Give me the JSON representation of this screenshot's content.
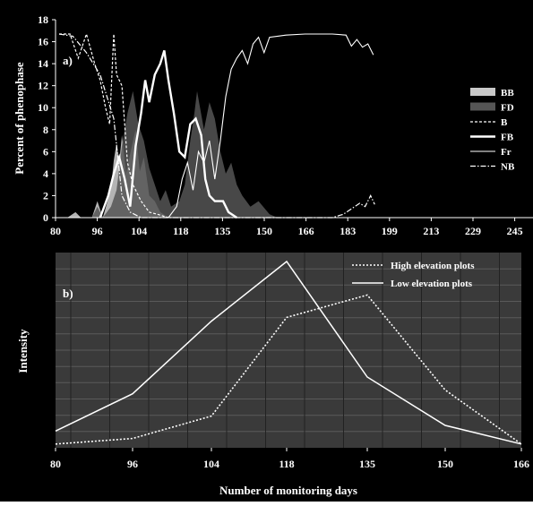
{
  "figure": {
    "xlabel_bottom": "Number of monitoring days"
  },
  "chart_data": [
    {
      "type": "area",
      "panel_label": "a)",
      "ylabel": "Percent of phenophase",
      "xlabel": "",
      "y_ticks": [
        0,
        2,
        4,
        6,
        8,
        10,
        12,
        14,
        16,
        18
      ],
      "ylim": [
        0,
        18
      ],
      "x_tick_labels": [
        "80",
        "96",
        "104",
        "118",
        "135",
        "150",
        "166",
        "183",
        "199",
        "213",
        "229",
        "245"
      ],
      "xlim_index": [
        0,
        11.55
      ],
      "grid": false,
      "legend_placement": "right",
      "series": [
        {
          "name": "BB",
          "style": "filled-light",
          "color": "#c8c8c8",
          "points": [
            [
              0.3,
              0
            ],
            [
              0.6,
              0.5
            ],
            [
              0.8,
              0
            ],
            [
              1.2,
              0
            ],
            [
              1.4,
              1.5
            ],
            [
              1.6,
              0
            ],
            [
              1.9,
              2.6
            ],
            [
              2.0,
              5.2
            ],
            [
              2.1,
              6.8
            ],
            [
              2.2,
              5.0
            ],
            [
              2.3,
              7.5
            ],
            [
              2.45,
              4.0
            ],
            [
              2.6,
              5.8
            ],
            [
              2.8,
              8.0
            ],
            [
              2.95,
              4.2
            ],
            [
              3.1,
              5.5
            ],
            [
              3.3,
              2.0
            ],
            [
              3.5,
              1.5
            ],
            [
              3.7,
              0.5
            ],
            [
              4.0,
              0
            ]
          ]
        },
        {
          "name": "FD",
          "style": "filled-dark",
          "color": "#555555",
          "points": [
            [
              1.2,
              0
            ],
            [
              1.4,
              1.0
            ],
            [
              1.6,
              0
            ],
            [
              1.9,
              1.0
            ],
            [
              2.1,
              2.5
            ],
            [
              2.3,
              6.5
            ],
            [
              2.5,
              9.5
            ],
            [
              2.7,
              11.5
            ],
            [
              2.9,
              8.5
            ],
            [
              3.1,
              7.0
            ],
            [
              3.3,
              4.5
            ],
            [
              3.5,
              3.0
            ],
            [
              3.7,
              1.5
            ],
            [
              3.9,
              2.5
            ],
            [
              4.1,
              1.0
            ],
            [
              4.4,
              1.5
            ],
            [
              4.6,
              3.0
            ],
            [
              4.8,
              7.0
            ],
            [
              4.95,
              9.5
            ],
            [
              5.05,
              11.5
            ],
            [
              5.3,
              8.0
            ],
            [
              5.5,
              10.5
            ],
            [
              5.7,
              9.0
            ],
            [
              5.9,
              6.0
            ],
            [
              6.1,
              4.0
            ],
            [
              6.3,
              5.0
            ],
            [
              6.5,
              3.0
            ],
            [
              6.7,
              2.0
            ],
            [
              7.0,
              1.0
            ],
            [
              7.3,
              1.5
            ],
            [
              7.7,
              0.3
            ],
            [
              8.0,
              0
            ]
          ]
        },
        {
          "name": "B",
          "style": "dashed",
          "color": "#ffffff",
          "points": [
            [
              0,
              16.7
            ],
            [
              0.4,
              16.7
            ],
            [
              0.7,
              14.5
            ],
            [
              1.0,
              16.7
            ],
            [
              1.3,
              14.0
            ],
            [
              1.5,
              12.5
            ],
            [
              1.7,
              10.0
            ],
            [
              1.85,
              8.5
            ],
            [
              2.0,
              16.7
            ],
            [
              2.1,
              13.0
            ],
            [
              2.3,
              12.0
            ],
            [
              2.5,
              5.0
            ],
            [
              2.7,
              3.0
            ],
            [
              3.0,
              1.5
            ],
            [
              3.3,
              0.5
            ],
            [
              3.6,
              0.3
            ],
            [
              4.0,
              0
            ]
          ]
        },
        {
          "name": "FB",
          "style": "thick",
          "color": "#ffffff",
          "points": [
            [
              1.5,
              0
            ],
            [
              1.8,
              2.0
            ],
            [
              2.0,
              4.0
            ],
            [
              2.2,
              5.5
            ],
            [
              2.4,
              3.5
            ],
            [
              2.6,
              1.0
            ],
            [
              2.8,
              6.5
            ],
            [
              3.0,
              9.5
            ],
            [
              3.15,
              12.5
            ],
            [
              3.3,
              10.5
            ],
            [
              3.5,
              13.0
            ],
            [
              3.7,
              14.0
            ],
            [
              3.85,
              15.2
            ],
            [
              4.0,
              12.5
            ],
            [
              4.2,
              9.5
            ],
            [
              4.4,
              6.0
            ],
            [
              4.6,
              5.5
            ],
            [
              4.8,
              8.5
            ],
            [
              5.0,
              9.0
            ],
            [
              5.2,
              7.5
            ],
            [
              5.35,
              3.5
            ],
            [
              5.5,
              2.0
            ],
            [
              5.7,
              1.5
            ],
            [
              6.0,
              1.5
            ],
            [
              6.2,
              0.5
            ],
            [
              6.5,
              0
            ]
          ]
        },
        {
          "name": "Fr",
          "style": "thin",
          "color": "#ffffff",
          "points": [
            [
              4.0,
              0
            ],
            [
              4.3,
              1.0
            ],
            [
              4.5,
              3.5
            ],
            [
              4.7,
              5.0
            ],
            [
              4.9,
              2.5
            ],
            [
              5.1,
              6.0
            ],
            [
              5.3,
              5.0
            ],
            [
              5.5,
              7.0
            ],
            [
              5.7,
              3.5
            ],
            [
              5.9,
              7.0
            ],
            [
              6.1,
              11.0
            ],
            [
              6.3,
              13.5
            ],
            [
              6.5,
              14.5
            ],
            [
              6.7,
              15.2
            ],
            [
              6.9,
              14.0
            ],
            [
              7.1,
              15.8
            ],
            [
              7.3,
              16.4
            ],
            [
              7.5,
              15.0
            ],
            [
              7.7,
              16.4
            ],
            [
              8.0,
              16.5
            ],
            [
              8.3,
              16.6
            ],
            [
              9.0,
              16.7
            ],
            [
              10.0,
              16.7
            ],
            [
              10.5,
              16.6
            ],
            [
              10.7,
              15.6
            ],
            [
              10.9,
              16.2
            ],
            [
              11.1,
              15.5
            ],
            [
              11.3,
              15.8
            ],
            [
              11.5,
              14.8
            ]
          ]
        },
        {
          "name": "NB",
          "style": "dash-dot",
          "color": "#ffffff",
          "points": [
            [
              0,
              16.7
            ],
            [
              0.5,
              16.5
            ],
            [
              1.0,
              15.0
            ],
            [
              1.5,
              13.0
            ],
            [
              2.0,
              9.0
            ],
            [
              2.3,
              2.0
            ],
            [
              2.6,
              0.5
            ],
            [
              3.0,
              0
            ],
            [
              10.0,
              0
            ],
            [
              10.4,
              0.3
            ],
            [
              10.7,
              0.8
            ],
            [
              11.0,
              1.3
            ],
            [
              11.2,
              1.0
            ],
            [
              11.4,
              2.0
            ],
            [
              11.55,
              1.2
            ]
          ]
        }
      ]
    },
    {
      "type": "line",
      "panel_label": "b)",
      "ylabel": "Intensity",
      "xlabel": "Number of monitoring days",
      "categories": [
        "80",
        "96",
        "104",
        "118",
        "135",
        "150",
        "166"
      ],
      "ylim": [
        0,
        100
      ],
      "grid": true,
      "legend_placement": "top-right",
      "series": [
        {
          "name": "High elevation plots",
          "style": "dotted",
          "color": "#ffffff",
          "values": [
            2,
            5,
            17,
            70,
            82,
            31,
            2
          ]
        },
        {
          "name": "Low elevation plots",
          "style": "solid",
          "color": "#ffffff",
          "values": [
            9,
            29,
            68,
            100,
            38,
            12,
            2
          ]
        }
      ]
    }
  ]
}
